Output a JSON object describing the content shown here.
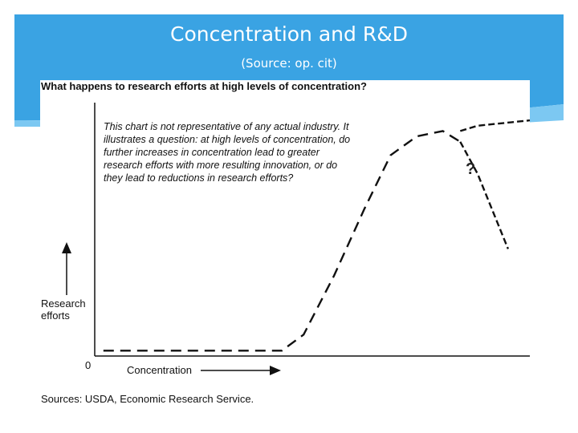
{
  "slide": {
    "title": "Concentration and R&D",
    "subtitle": "(Source: op. cit)"
  },
  "colors": {
    "banner": "#3aa3e3",
    "banner_light": "#7cc8f2",
    "line": "#111111"
  },
  "chart_data": {
    "type": "line",
    "title": "What happens to research efforts at high levels of concentration?",
    "note": "This chart is not representative of any actual industry. It illustrates a question: at high levels of concentration, do further increases in concentration lead to greater research efforts with more resulting innovation, or do they lead to reductions in research efforts?",
    "xlabel": "Concentration",
    "ylabel": "Research efforts",
    "origin_label": "0",
    "source": "Sources: USDA, Economic Research Service.",
    "annotation": "?",
    "axis_arrows": true,
    "xlim": [
      0,
      100
    ],
    "ylim": [
      0,
      100
    ],
    "series": [
      {
        "style": "dashed",
        "x": [
          2,
          43,
          48,
          55,
          62,
          68,
          74,
          80,
          84
        ],
        "y": [
          2,
          2,
          8,
          30,
          55,
          75,
          82,
          84,
          80
        ]
      },
      {
        "style": "dashed",
        "x": [
          84,
          88,
          100
        ],
        "y": [
          84,
          86,
          88
        ]
      },
      {
        "style": "dashed",
        "x": [
          84,
          88,
          95
        ],
        "y": [
          80,
          68,
          40
        ]
      }
    ]
  }
}
